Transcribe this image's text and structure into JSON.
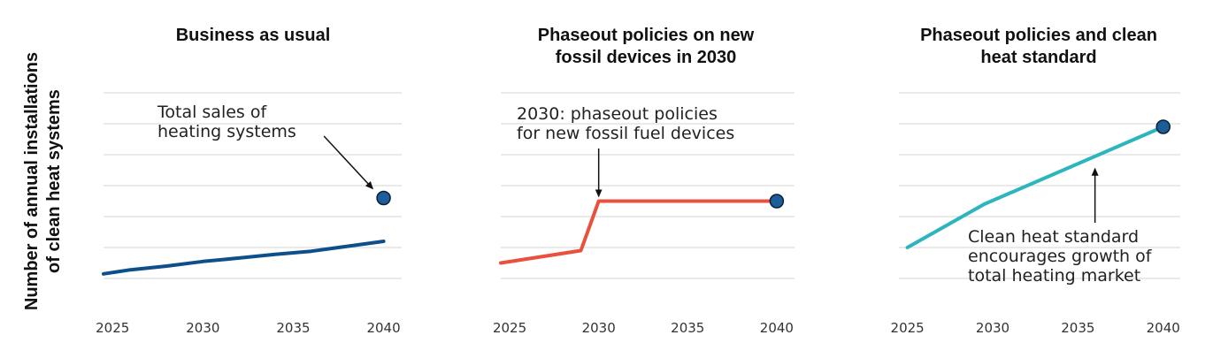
{
  "ylabel_lines": [
    "Number of annual installations",
    "of clean heat systems"
  ],
  "chart_data": [
    {
      "type": "line",
      "title_lines": [
        "Business as usual"
      ],
      "x_ticks": [
        2025,
        2030,
        2035,
        2040
      ],
      "xlim": [
        2024.5,
        2041
      ],
      "ylim": [
        0,
        100
      ],
      "grid_values": [
        10,
        20,
        30,
        40,
        50,
        60,
        70
      ],
      "color": "#0d4f8b",
      "series": [
        {
          "name": "Clean heat installations",
          "x": [
            2024.5,
            2026,
            2028,
            2030,
            2032,
            2034,
            2036,
            2038,
            2040
          ],
          "y": [
            11.5,
            12.8,
            14,
            15.5,
            16.6,
            17.8,
            18.8,
            20.4,
            22
          ]
        }
      ],
      "total_point": {
        "x": 2040,
        "y": 36
      },
      "annotation": {
        "lines": [
          "Total sales of",
          "heating systems"
        ],
        "arrow_from": [
          2036.7,
          56
        ],
        "arrow_to": [
          2039.4,
          39
        ]
      }
    },
    {
      "type": "line",
      "title_lines": [
        "Phaseout policies on new",
        "fossil devices in 2030"
      ],
      "x_ticks": [
        2025,
        2030,
        2035,
        2040
      ],
      "xlim": [
        2024.5,
        2041
      ],
      "ylim": [
        0,
        100
      ],
      "grid_values": [
        10,
        20,
        30,
        40,
        50,
        60,
        70
      ],
      "color": "#e8513c",
      "series": [
        {
          "name": "Clean heat installations",
          "x": [
            2024.5,
            2029,
            2030,
            2040
          ],
          "y": [
            15,
            19,
            35,
            35
          ]
        }
      ],
      "total_point": {
        "x": 2040,
        "y": 35
      },
      "annotation": {
        "lines": [
          "2030: phaseout policies",
          "for new fossil fuel devices"
        ],
        "arrow_from": [
          2030,
          52
        ],
        "arrow_to": [
          2030,
          36.5
        ]
      }
    },
    {
      "type": "line",
      "title_lines": [
        "Phaseout policies and clean",
        "heat standard"
      ],
      "x_ticks": [
        2025,
        2030,
        2035,
        2040
      ],
      "xlim": [
        2024.5,
        2041
      ],
      "ylim": [
        0,
        100
      ],
      "grid_values": [
        10,
        20,
        30,
        40,
        50,
        60,
        70
      ],
      "color": "#2bb5bd",
      "series": [
        {
          "name": "Clean heat installations",
          "x": [
            2025,
            2029.5,
            2040
          ],
          "y": [
            20,
            34,
            59
          ]
        }
      ],
      "total_point": {
        "x": 2040,
        "y": 59
      },
      "annotation": {
        "lines": [
          "Clean heat standard",
          "encourages growth of",
          "total heating market"
        ],
        "arrow_from": [
          2036,
          28
        ],
        "arrow_to": [
          2036,
          45.5
        ]
      }
    }
  ]
}
